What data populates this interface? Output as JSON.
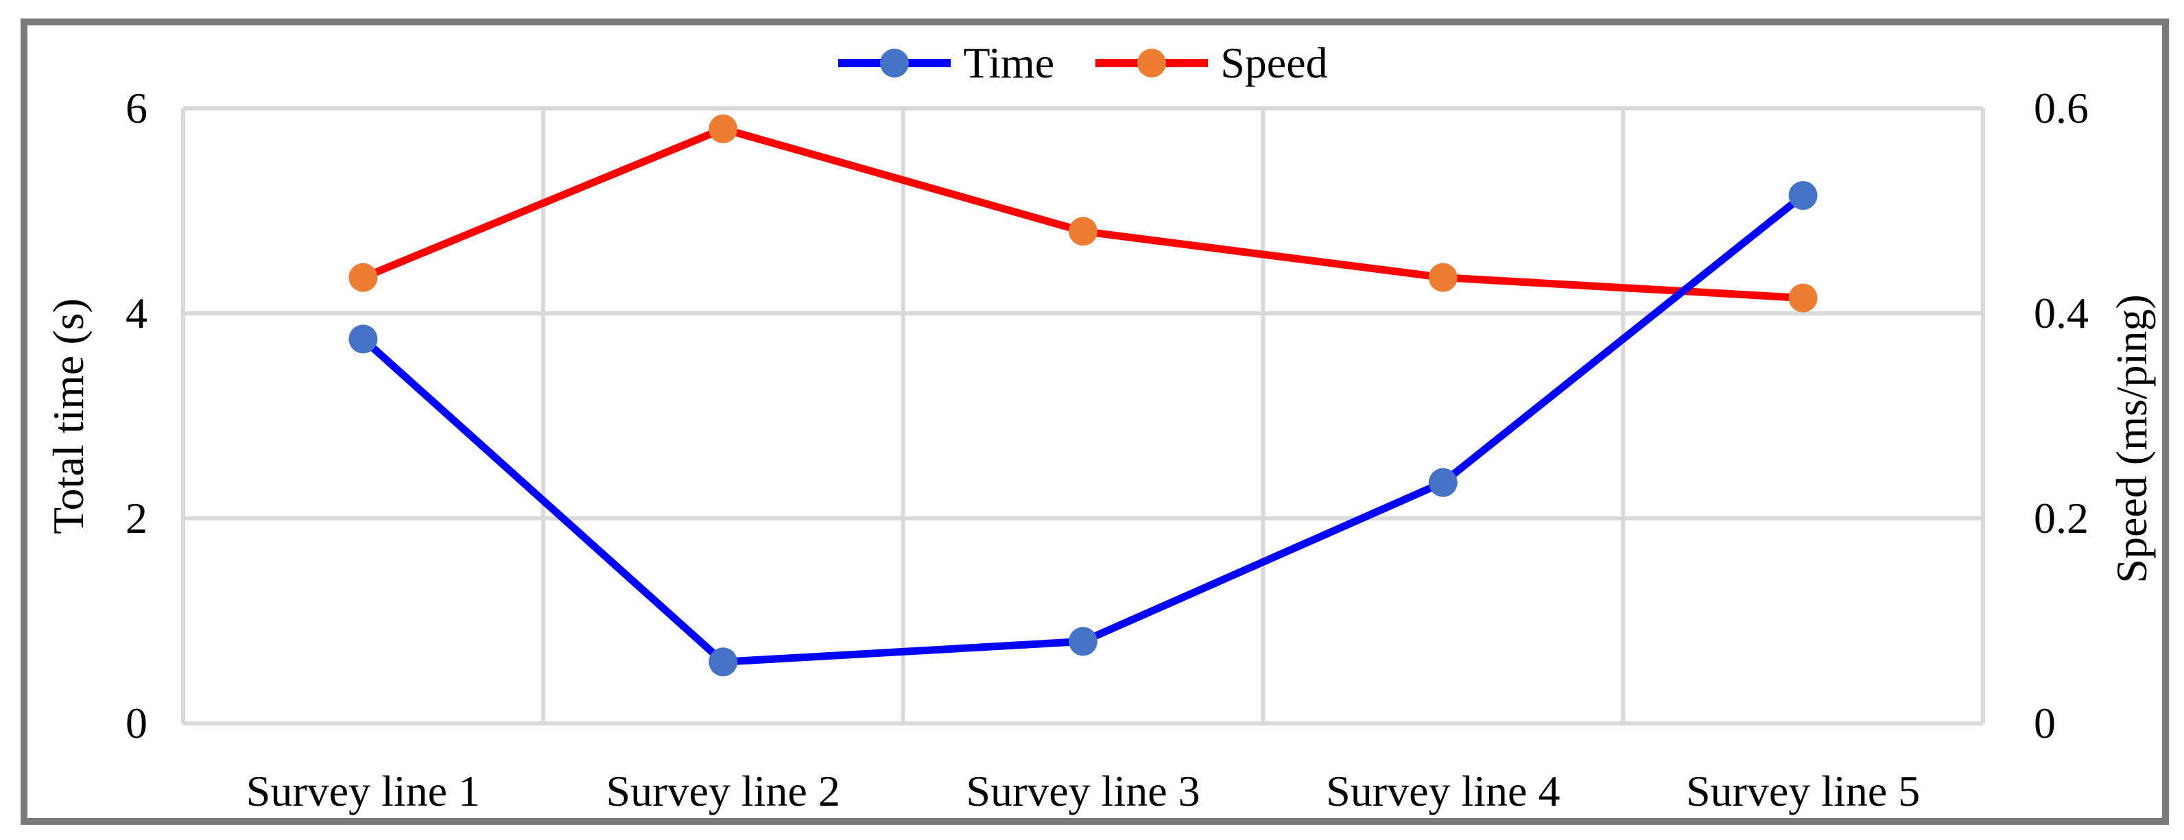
{
  "figure": {
    "description": "Dual-axis line chart comparing total time and speed across five survey lines"
  },
  "chart_data": {
    "type": "line",
    "categories": [
      "Survey line 1",
      "Survey line 2",
      "Survey line 3",
      "Survey line 4",
      "Survey line 5"
    ],
    "series": [
      {
        "name": "Time",
        "axis": "left",
        "line_color": "#0000FF",
        "marker_color": "#4472C4",
        "values": [
          3.75,
          0.6,
          0.8,
          2.35,
          5.15
        ]
      },
      {
        "name": "Speed",
        "axis": "right",
        "line_color": "#FF0000",
        "marker_color": "#ED7D31",
        "values": [
          0.435,
          0.58,
          0.48,
          0.435,
          0.415
        ]
      }
    ],
    "left_axis": {
      "label": "Total time (s)",
      "min": 0,
      "max": 6,
      "ticks": [
        "6",
        "4",
        "2",
        "0"
      ]
    },
    "right_axis": {
      "label": "Speed (ms/ping)",
      "min": 0,
      "max": 0.6,
      "ticks": [
        "0.6",
        "0.4",
        "0.2",
        "0"
      ]
    },
    "legend_position": "top-center",
    "grid": true,
    "colors": {
      "gridline": "#D9D9D9",
      "frame": "#7A7A7A",
      "text": "#000000"
    }
  }
}
